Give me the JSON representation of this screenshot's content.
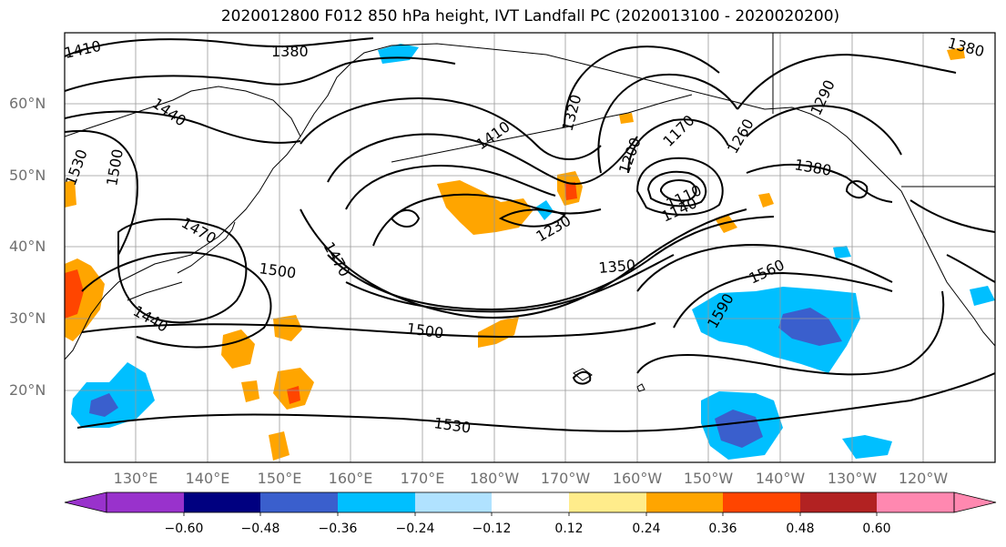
{
  "title": "2020012800 F012 850 hPa height, IVT Landfall PC (2020013100 - 2020020200)",
  "map": {
    "lat_labels": [
      "60°N",
      "50°N",
      "40°N",
      "30°N",
      "20°N"
    ],
    "lon_labels": [
      "130°E",
      "140°E",
      "150°E",
      "160°E",
      "170°E",
      "180°W",
      "170°W",
      "160°W",
      "150°W",
      "140°W",
      "130°W",
      "120°W"
    ],
    "contour_labels": [
      "1410",
      "1380",
      "1440",
      "1530",
      "1500",
      "1470",
      "1500",
      "1440",
      "1470",
      "1410",
      "1320",
      "1200",
      "1170",
      "1290",
      "1260",
      "1380",
      "1110",
      "1140",
      "1230",
      "1350",
      "1560",
      "1590",
      "1500",
      "1530",
      "1380"
    ]
  },
  "colorbar": {
    "tick_labels": [
      "−0.60",
      "−0.48",
      "−0.36",
      "−0.24",
      "−0.12",
      "0.12",
      "0.24",
      "0.36",
      "0.48",
      "0.60"
    ],
    "colors": [
      "#9932cc",
      "#000080",
      "#3a5fcd",
      "#00bfff",
      "#b0e2ff",
      "#ffffff",
      "#ffec8b",
      "#ffa500",
      "#ff4500",
      "#b22222",
      "#ff88b0"
    ]
  },
  "colors": {
    "contour": "#000000",
    "grid": "#999999",
    "coast": "#000000",
    "axis_label": "#707070"
  }
}
